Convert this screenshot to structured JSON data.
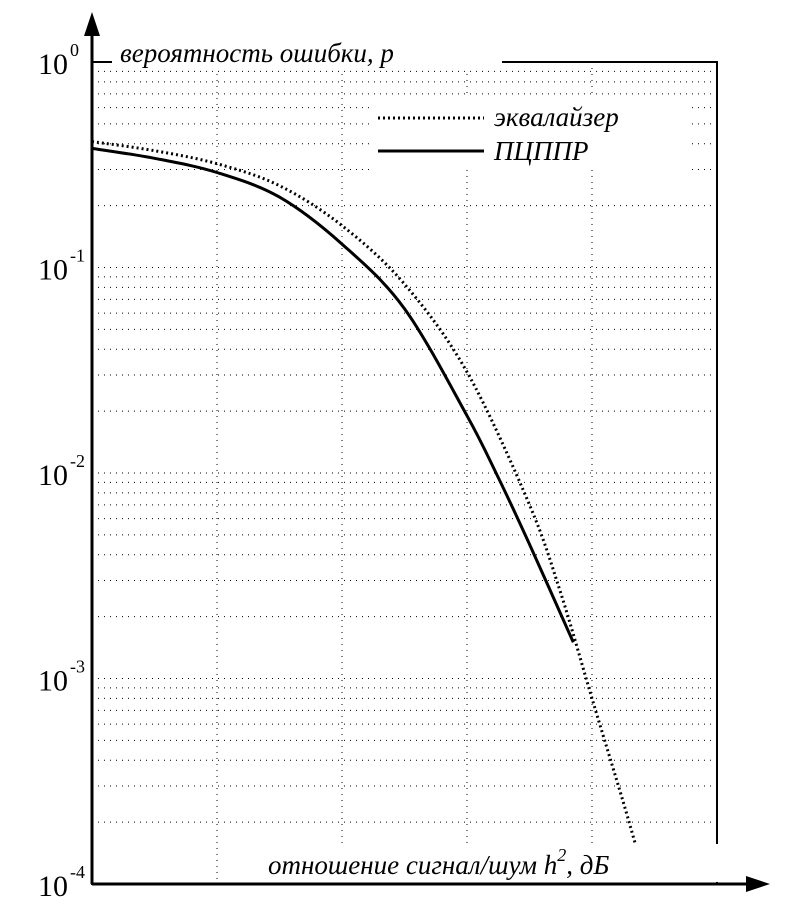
{
  "chart_data": {
    "type": "line",
    "title": "",
    "ylabel": "вероятность ошибки, p",
    "xlabel_main": "отношение сигнал/шум h",
    "xlabel_sup": "2",
    "xlabel_tail": ", дБ",
    "y_scale": "log",
    "ylim": [
      0.0001,
      1
    ],
    "xlim": [
      0,
      1
    ],
    "grid": true,
    "legend_position": "top-right",
    "y_ticks": [
      {
        "base": "10",
        "exp": "0",
        "value": 1
      },
      {
        "base": "10",
        "exp": "-1",
        "value": 0.1
      },
      {
        "base": "10",
        "exp": "-2",
        "value": 0.01
      },
      {
        "base": "10",
        "exp": "-3",
        "value": 0.001
      },
      {
        "base": "10",
        "exp": "-4",
        "value": 0.0001
      }
    ],
    "series": [
      {
        "name": "эквалайзер",
        "style": "dotted",
        "x": [
          0,
          0.1,
          0.2,
          0.3,
          0.4,
          0.5,
          0.6,
          0.7,
          0.75,
          0.8,
          0.85,
          0.88
        ],
        "y": [
          0.41,
          0.37,
          0.32,
          0.25,
          0.16,
          0.083,
          0.031,
          0.007,
          0.0026,
          0.0008,
          0.00025,
          0.00012
        ]
      },
      {
        "name": "ПЦППР",
        "style": "solid",
        "x": [
          0,
          0.1,
          0.2,
          0.3,
          0.4,
          0.5,
          0.6,
          0.65,
          0.7,
          0.77
        ],
        "y": [
          0.38,
          0.34,
          0.29,
          0.22,
          0.13,
          0.063,
          0.019,
          0.0095,
          0.0045,
          0.0015
        ]
      }
    ]
  }
}
